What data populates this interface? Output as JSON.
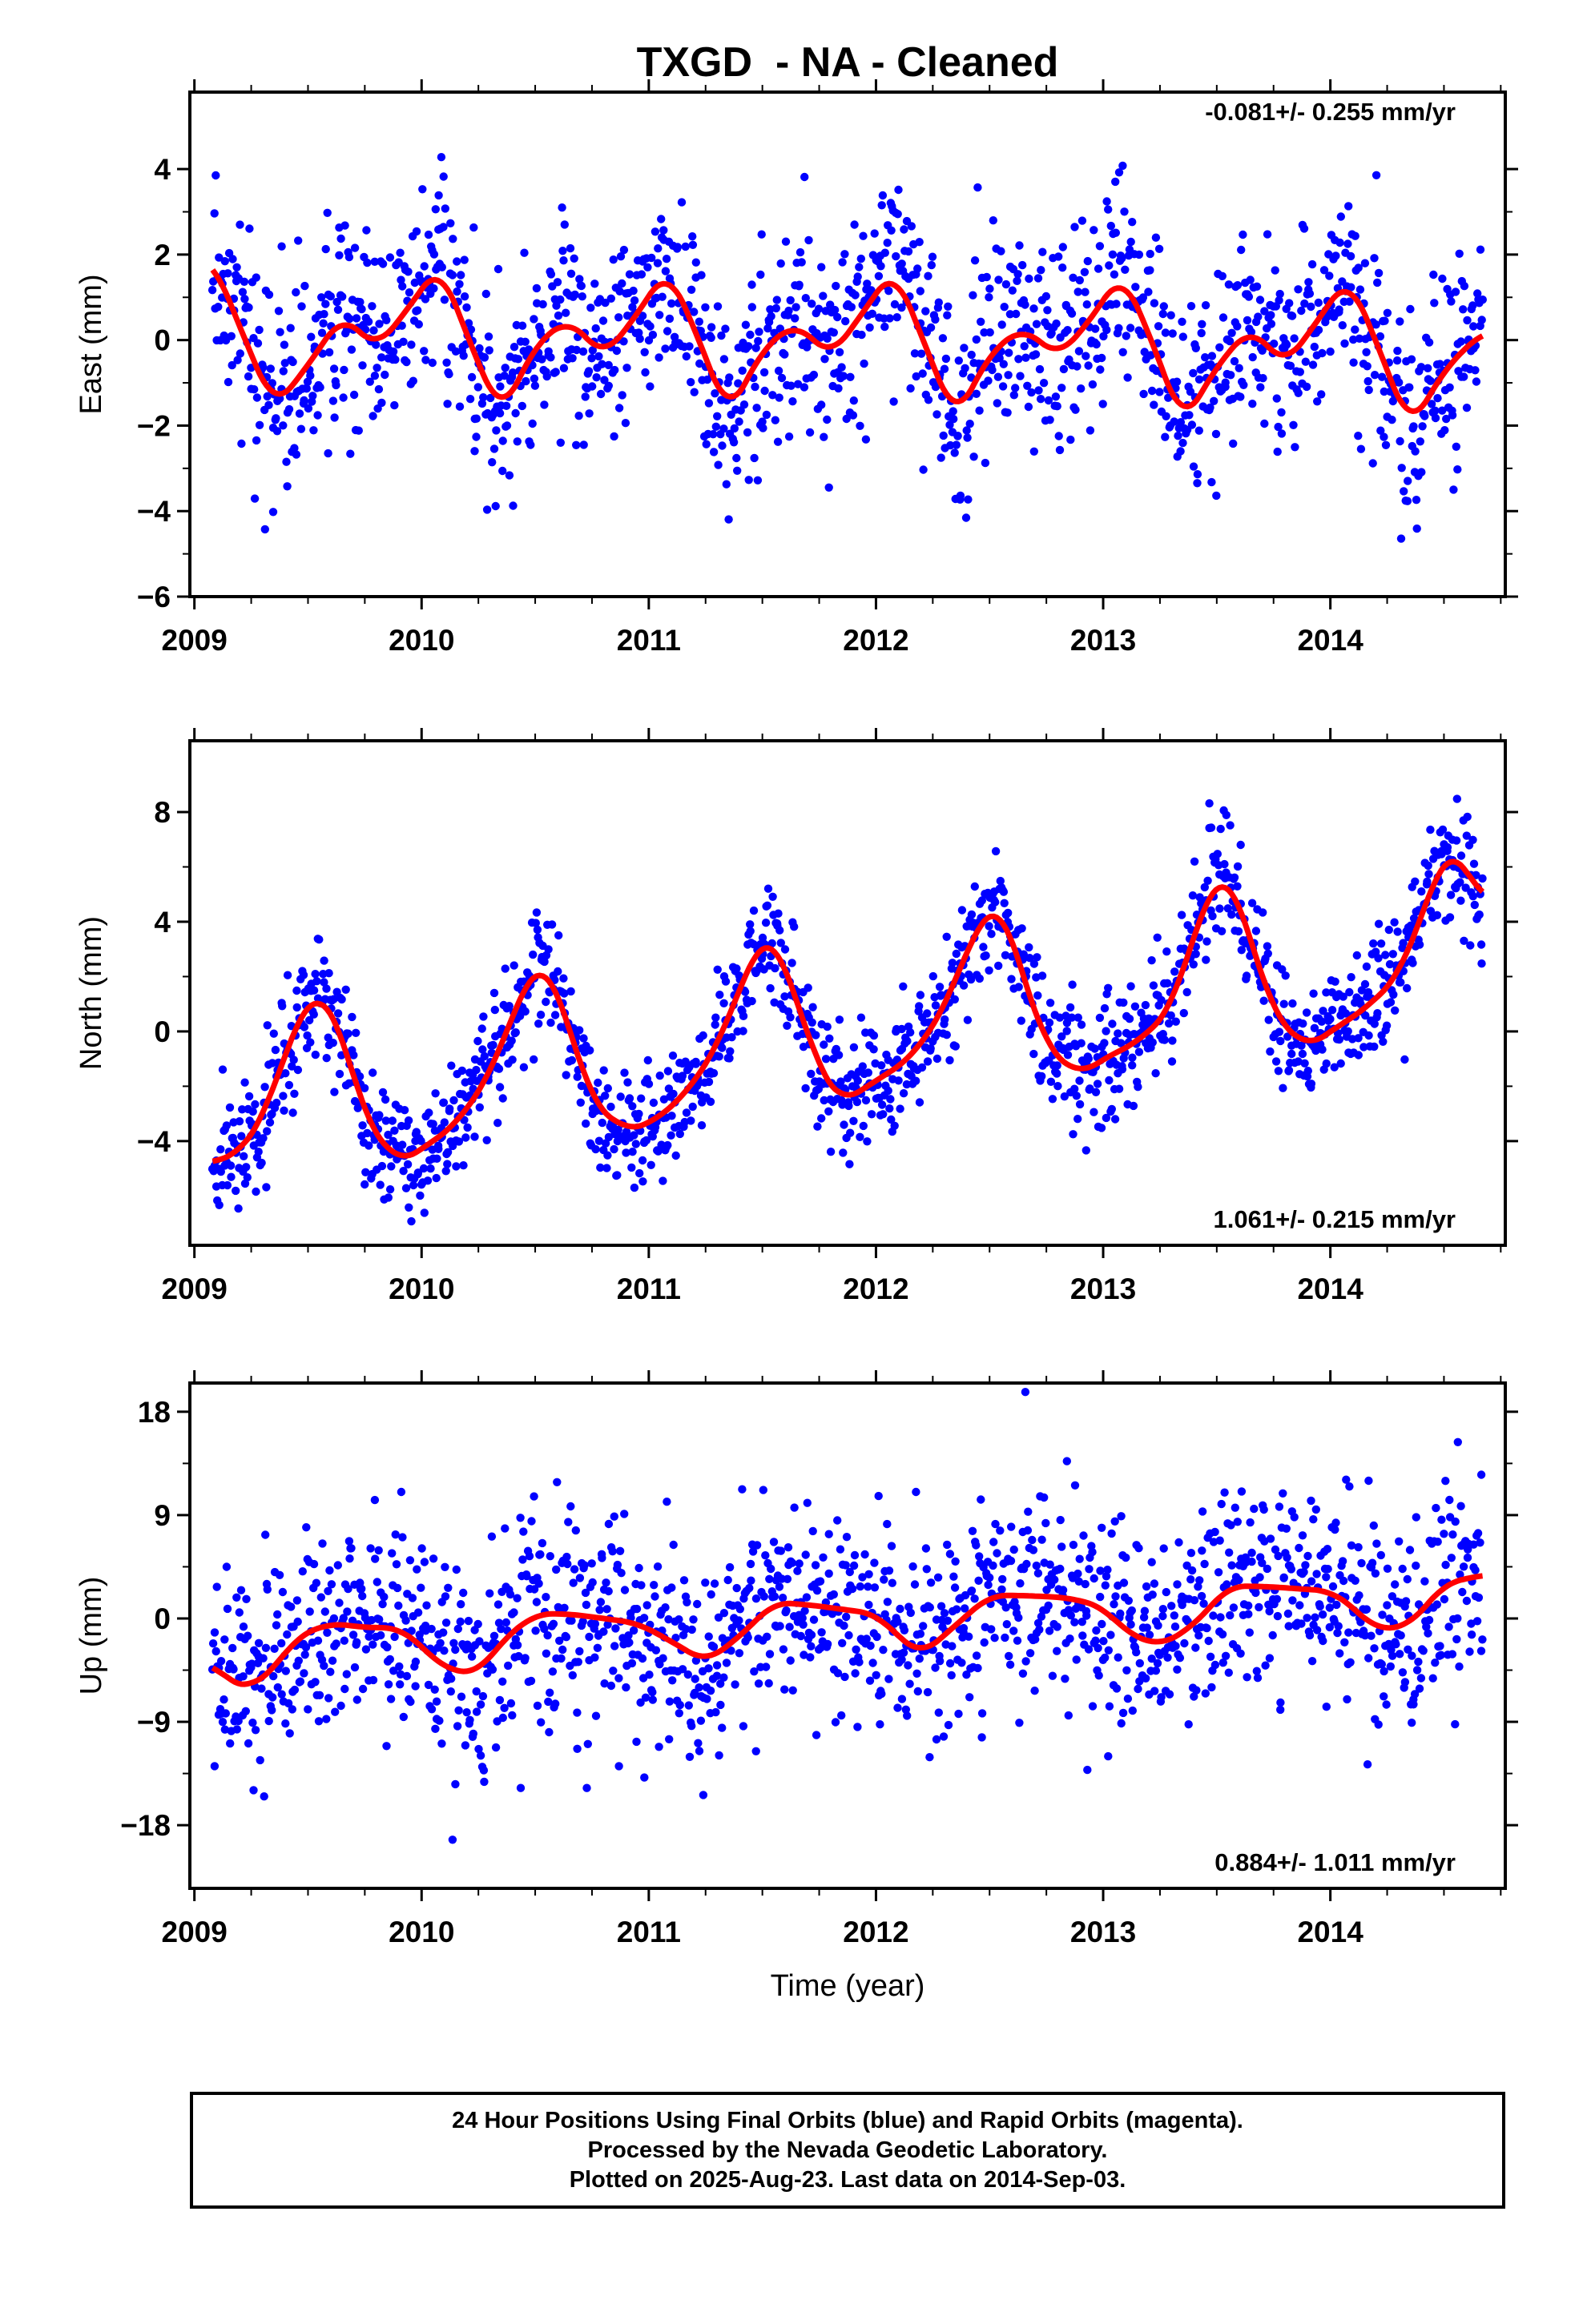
{
  "title": "TXGD  - NA - Cleaned",
  "xlabel": "Time (year)",
  "x_ticks": [
    "2009",
    "2010",
    "2011",
    "2012",
    "2013",
    "2014"
  ],
  "colors": {
    "points": "#0000ff",
    "fit": "#ff0000",
    "axis": "#000000"
  },
  "footer": {
    "line1": "24 Hour Positions Using Final Orbits (blue) and Rapid Orbits (magenta).",
    "line2": "Processed by the Nevada Geodetic Laboratory.",
    "line3": "Plotted on 2025-Aug-23. Last data on 2014-Sep-03."
  },
  "chart_data": [
    {
      "type": "scatter",
      "id": "east",
      "ylabel": "East (mm)",
      "rate_label": "-0.081+/- 0.255 mm/yr",
      "rate_position": "top-right",
      "xlim": [
        2008.98,
        2014.77
      ],
      "ylim": [
        -6.0,
        5.8
      ],
      "y_ticks": [
        -6,
        -4,
        -2,
        0,
        2,
        4
      ],
      "fit": {
        "x": [
          2009.08,
          2009.2,
          2009.35,
          2009.5,
          2009.65,
          2009.8,
          2009.95,
          2010.08,
          2010.2,
          2010.35,
          2010.5,
          2010.65,
          2010.8,
          2010.95,
          2011.08,
          2011.2,
          2011.35,
          2011.5,
          2011.65,
          2011.8,
          2011.95,
          2012.08,
          2012.2,
          2012.35,
          2012.5,
          2012.65,
          2012.8,
          2012.95,
          2013.08,
          2013.2,
          2013.35,
          2013.5,
          2013.65,
          2013.8,
          2013.95,
          2014.08,
          2014.2,
          2014.35,
          2014.5,
          2014.67
        ],
        "y": [
          1.9,
          0.3,
          -1.6,
          -0.6,
          0.6,
          -0.2,
          0.8,
          1.8,
          0.1,
          -1.8,
          -0.1,
          0.5,
          -0.4,
          0.6,
          1.7,
          0.3,
          -1.8,
          -0.2,
          0.4,
          -0.4,
          0.7,
          1.7,
          0.1,
          -1.9,
          -0.3,
          0.3,
          -0.4,
          0.5,
          1.6,
          0.2,
          -2.0,
          -0.6,
          0.3,
          -0.6,
          0.5,
          1.5,
          0.0,
          -2.1,
          -0.7,
          0.2
        ]
      },
      "seasonal": {
        "offset": 0.0,
        "annual": 1.0,
        "semiannual": 0.6,
        "phase": 0.1,
        "trend": -0.081
      },
      "scatter": {
        "n": 1500,
        "noise": 1.2,
        "seed": 17
      }
    },
    {
      "type": "scatter",
      "id": "north",
      "ylabel": "North (mm)",
      "rate_label": "1.061+/- 0.215 mm/yr",
      "rate_position": "bottom-right",
      "xlim": [
        2008.98,
        2014.77
      ],
      "ylim": [
        -7.8,
        10.6
      ],
      "y_ticks": [
        -4,
        0,
        4,
        8
      ],
      "fit": {
        "x": [
          2009.08,
          2009.2,
          2009.3,
          2009.4,
          2009.5,
          2009.55,
          2009.65,
          2009.75,
          2009.9,
          2010.0,
          2010.15,
          2010.3,
          2010.4,
          2010.5,
          2010.55,
          2010.65,
          2010.75,
          2010.9,
          2011.0,
          2011.15,
          2011.3,
          2011.4,
          2011.5,
          2011.55,
          2011.65,
          2011.75,
          2011.85,
          2012.0,
          2012.15,
          2012.3,
          2012.4,
          2012.5,
          2012.55,
          2012.65,
          2012.75,
          2012.9,
          2013.0,
          2013.15,
          2013.3,
          2013.4,
          2013.5,
          2013.55,
          2013.65,
          2013.75,
          2013.9,
          2014.0,
          2014.15,
          2014.3,
          2014.4,
          2014.5,
          2014.55,
          2014.67
        ],
        "y": [
          -4.8,
          -4.4,
          -3.2,
          -0.8,
          1.2,
          1.4,
          0.0,
          -3.2,
          -4.8,
          -4.3,
          -3.4,
          -1.6,
          0.6,
          2.4,
          2.4,
          0.2,
          -2.6,
          -3.6,
          -3.4,
          -2.4,
          -0.6,
          1.6,
          3.4,
          3.4,
          1.2,
          -1.4,
          -2.6,
          -1.8,
          -1.0,
          0.8,
          3.0,
          4.5,
          4.6,
          2.0,
          -0.6,
          -1.6,
          -1.0,
          -0.4,
          0.8,
          3.6,
          5.6,
          5.7,
          3.4,
          0.6,
          -0.6,
          0.0,
          0.8,
          2.0,
          4.2,
          6.4,
          6.6,
          4.8
        ]
      },
      "seasonal": {
        "offset": 0.0,
        "annual": 4.0,
        "semiannual": 0.6,
        "phase": 0.5,
        "trend": 1.061
      },
      "scatter": {
        "n": 1500,
        "noise": 1.1,
        "seed": 29
      }
    },
    {
      "type": "scatter",
      "id": "up",
      "ylabel": "Up (mm)",
      "rate_label": "0.884+/- 1.011 mm/yr",
      "rate_position": "bottom-right",
      "xlim": [
        2008.98,
        2014.77
      ],
      "ylim": [
        -23.5,
        20.5
      ],
      "y_ticks": [
        -18,
        -9,
        0,
        9,
        18
      ],
      "fit": {
        "x": [
          2009.08,
          2009.15,
          2009.25,
          2009.35,
          2009.45,
          2009.6,
          2009.75,
          2009.9,
          2010.0,
          2010.1,
          2010.25,
          2010.35,
          2010.5,
          2010.65,
          2010.8,
          2010.95,
          2011.1,
          2011.25,
          2011.4,
          2011.55,
          2011.7,
          2011.85,
          2012.0,
          2012.1,
          2012.2,
          2012.35,
          2012.5,
          2012.65,
          2012.85,
          2013.0,
          2013.1,
          2013.25,
          2013.4,
          2013.55,
          2013.7,
          2013.85,
          2014.0,
          2014.1,
          2014.2,
          2014.35,
          2014.5,
          2014.67
        ],
        "y": [
          -3.8,
          -5.6,
          -6.0,
          -4.4,
          -1.6,
          -0.4,
          -0.8,
          -0.8,
          -2.4,
          -4.4,
          -4.8,
          -2.0,
          0.4,
          0.4,
          0.0,
          -0.4,
          -2.0,
          -3.8,
          -1.6,
          1.4,
          1.2,
          0.8,
          0.4,
          -1.6,
          -3.2,
          -0.6,
          2.0,
          2.0,
          1.8,
          1.0,
          -1.2,
          -2.4,
          -0.6,
          2.8,
          2.8,
          2.6,
          2.4,
          1.0,
          -1.0,
          -0.6,
          3.0,
          3.8
        ]
      },
      "seasonal": {
        "offset": 0.0,
        "annual": 3.0,
        "semiannual": 0.0,
        "phase": 0.2,
        "trend": 0.884
      },
      "scatter": {
        "n": 1500,
        "noise": 4.6,
        "seed": 43
      }
    }
  ]
}
